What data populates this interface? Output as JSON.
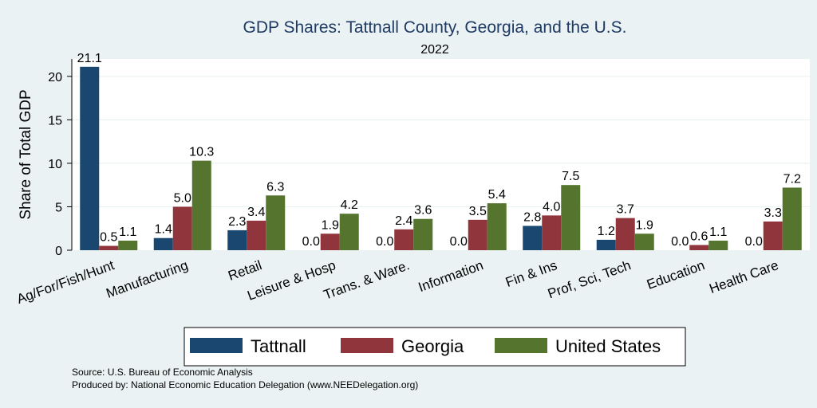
{
  "chart_data": {
    "type": "bar",
    "title": "GDP Shares: Tattnall County, Georgia, and the U.S.",
    "subtitle": "2022",
    "ylabel": "Share of Total GDP",
    "xlabel": "",
    "ylim": [
      0,
      22
    ],
    "yticks": [
      0,
      5,
      10,
      15,
      20
    ],
    "grid": true,
    "legend_position": "bottom",
    "categories": [
      "Ag/For/Fish/Hunt",
      "Manufacturing",
      "Retail",
      "Leisure & Hosp",
      "Trans. & Ware.",
      "Information",
      "Fin & Ins",
      "Prof, Sci, Tech",
      "Education",
      "Health Care"
    ],
    "series": [
      {
        "name": "Tattnall",
        "color": "#1a476f",
        "values": [
          21.1,
          1.4,
          2.3,
          0.0,
          0.0,
          0.0,
          2.8,
          1.2,
          0.0,
          0.0
        ]
      },
      {
        "name": "Georgia",
        "color": "#90353b",
        "values": [
          0.5,
          5.0,
          3.4,
          1.9,
          2.4,
          3.5,
          4.0,
          3.7,
          0.6,
          3.3
        ]
      },
      {
        "name": "United States",
        "color": "#55752f",
        "values": [
          1.1,
          10.3,
          6.3,
          4.2,
          3.6,
          5.4,
          7.5,
          1.9,
          1.1,
          7.2
        ]
      }
    ],
    "notes": [
      "Source: U.S. Bureau of Economic Analysis",
      "Produced by: National Economic Education Delegation (www.NEEDelegation.org)"
    ]
  }
}
